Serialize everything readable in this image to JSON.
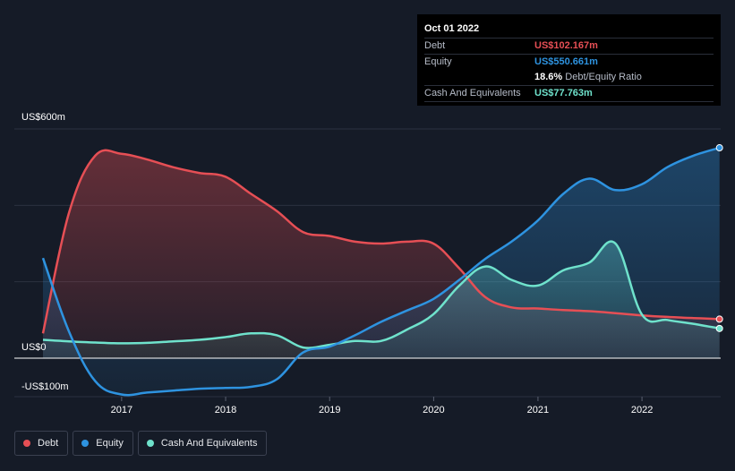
{
  "chart_data": {
    "type": "area",
    "title": "",
    "xlabel": "",
    "ylabel": "",
    "ylim": [
      -100,
      600
    ],
    "y_tick_labels": [
      "US$600m",
      "US$0",
      "-US$100m"
    ],
    "x_tick_labels": [
      "2017",
      "2018",
      "2019",
      "2020",
      "2021",
      "2022"
    ],
    "x": [
      "2016-03-31",
      "2016-06-30",
      "2016-09-30",
      "2016-12-31",
      "2017-03-31",
      "2017-06-30",
      "2017-09-30",
      "2017-12-31",
      "2018-03-31",
      "2018-06-30",
      "2018-09-30",
      "2018-12-31",
      "2019-03-31",
      "2019-06-30",
      "2019-09-30",
      "2019-12-31",
      "2020-03-31",
      "2020-06-30",
      "2020-09-30",
      "2020-12-31",
      "2021-03-31",
      "2021-06-30",
      "2021-09-30",
      "2021-12-31",
      "2022-03-31",
      "2022-06-30",
      "2022-09-30"
    ],
    "series": [
      {
        "name": "Debt",
        "color": "#e64f55",
        "values": [
          65,
          380,
          530,
          535,
          520,
          500,
          485,
          475,
          430,
          385,
          330,
          320,
          305,
          300,
          305,
          300,
          235,
          160,
          133,
          130,
          126,
          123,
          118,
          112,
          108,
          105,
          102.167
        ]
      },
      {
        "name": "Equity",
        "color": "#2e93e0",
        "values": [
          262,
          70,
          -60,
          -95,
          -90,
          -85,
          -80,
          -78,
          -75,
          -55,
          15,
          30,
          60,
          95,
          125,
          155,
          205,
          260,
          305,
          360,
          430,
          470,
          440,
          455,
          500,
          530,
          550.661
        ]
      },
      {
        "name": "Cash And Equivalents",
        "color": "#6fe2cc",
        "values": [
          48,
          44,
          41,
          39,
          40,
          44,
          48,
          55,
          65,
          60,
          28,
          35,
          45,
          45,
          75,
          115,
          190,
          240,
          205,
          190,
          230,
          250,
          300,
          115,
          100,
          90,
          77.763
        ]
      }
    ]
  },
  "tooltip": {
    "date": "Oct 01 2022",
    "debt_label": "Debt",
    "debt_value": "US$102.167m",
    "equity_label": "Equity",
    "equity_value": "US$550.661m",
    "ratio_value": "18.6%",
    "ratio_label": "Debt/Equity Ratio",
    "cash_label": "Cash And Equivalents",
    "cash_value": "US$77.763m"
  },
  "legend": [
    {
      "label": "Debt",
      "color": "#e64f55"
    },
    {
      "label": "Equity",
      "color": "#2e93e0"
    },
    {
      "label": "Cash And Equivalents",
      "color": "#6fe2cc"
    }
  ]
}
